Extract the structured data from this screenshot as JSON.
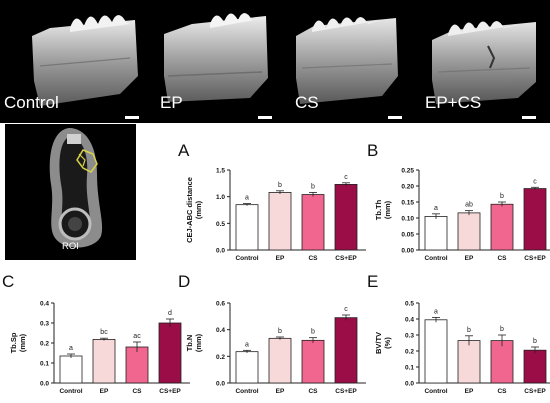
{
  "images": {
    "labels": [
      "Control",
      "EP",
      "CS",
      "EP+CS"
    ],
    "roi_label": "ROI"
  },
  "colors": {
    "control": "#ffffff",
    "ep": "#f8d9d9",
    "cs": "#f1668e",
    "cs_ep": "#9a0d46",
    "axis": "#222222"
  },
  "chart_data": [
    {
      "panel": "A",
      "type": "bar",
      "ylabel": "CEJ-ABC distance\n(mm)",
      "categories": [
        "Control",
        "EP",
        "CS",
        "CS+EP"
      ],
      "values": [
        0.85,
        1.08,
        1.04,
        1.23
      ],
      "errors": [
        0.02,
        0.03,
        0.04,
        0.03
      ],
      "significance": [
        "a",
        "b",
        "b",
        "c"
      ],
      "ylim": [
        0,
        1.5
      ],
      "yticks": [
        "0.0",
        "0.5",
        "1.0",
        "1.5"
      ]
    },
    {
      "panel": "B",
      "type": "bar",
      "ylabel": "Tb.Th\n(mm)",
      "categories": [
        "Control",
        "EP",
        "CS",
        "CS+EP"
      ],
      "values": [
        0.105,
        0.116,
        0.143,
        0.192
      ],
      "errors": [
        0.008,
        0.007,
        0.007,
        0.004
      ],
      "significance": [
        "a",
        "ab",
        "b",
        "c"
      ],
      "ylim": [
        0,
        0.25
      ],
      "yticks": [
        "0.00",
        "0.05",
        "0.10",
        "0.15",
        "0.20",
        "0.25"
      ]
    },
    {
      "panel": "C",
      "type": "bar",
      "ylabel": "Tb.Sp\n(mm)",
      "categories": [
        "Control",
        "EP",
        "CS",
        "CS+EP"
      ],
      "values": [
        0.135,
        0.218,
        0.18,
        0.3
      ],
      "errors": [
        0.01,
        0.006,
        0.025,
        0.02
      ],
      "significance": [
        "a",
        "bc",
        "ac",
        "d"
      ],
      "ylim": [
        0,
        0.4
      ],
      "yticks": [
        "0.0",
        "0.1",
        "0.2",
        "0.3",
        "0.4"
      ]
    },
    {
      "panel": "D",
      "type": "bar",
      "ylabel": "Tb.N\n(mm)",
      "categories": [
        "Control",
        "EP",
        "CS",
        "CS+EP"
      ],
      "values": [
        0.235,
        0.335,
        0.32,
        0.49
      ],
      "errors": [
        0.01,
        0.01,
        0.02,
        0.02
      ],
      "significance": [
        "a",
        "b",
        "b",
        "c"
      ],
      "ylim": [
        0,
        0.6
      ],
      "yticks": [
        "0.0",
        "0.2",
        "0.4",
        "0.6"
      ]
    },
    {
      "panel": "E",
      "type": "bar",
      "ylabel": "BV/TV\n(%)",
      "categories": [
        "Control",
        "EP",
        "CS",
        "CS+EP"
      ],
      "values": [
        0.395,
        0.265,
        0.265,
        0.205
      ],
      "errors": [
        0.015,
        0.03,
        0.035,
        0.02
      ],
      "significance": [
        "a",
        "b",
        "b",
        "b"
      ],
      "ylim": [
        0,
        0.5
      ],
      "yticks": [
        "0.0",
        "0.1",
        "0.2",
        "0.3",
        "0.4",
        "0.5"
      ]
    }
  ]
}
